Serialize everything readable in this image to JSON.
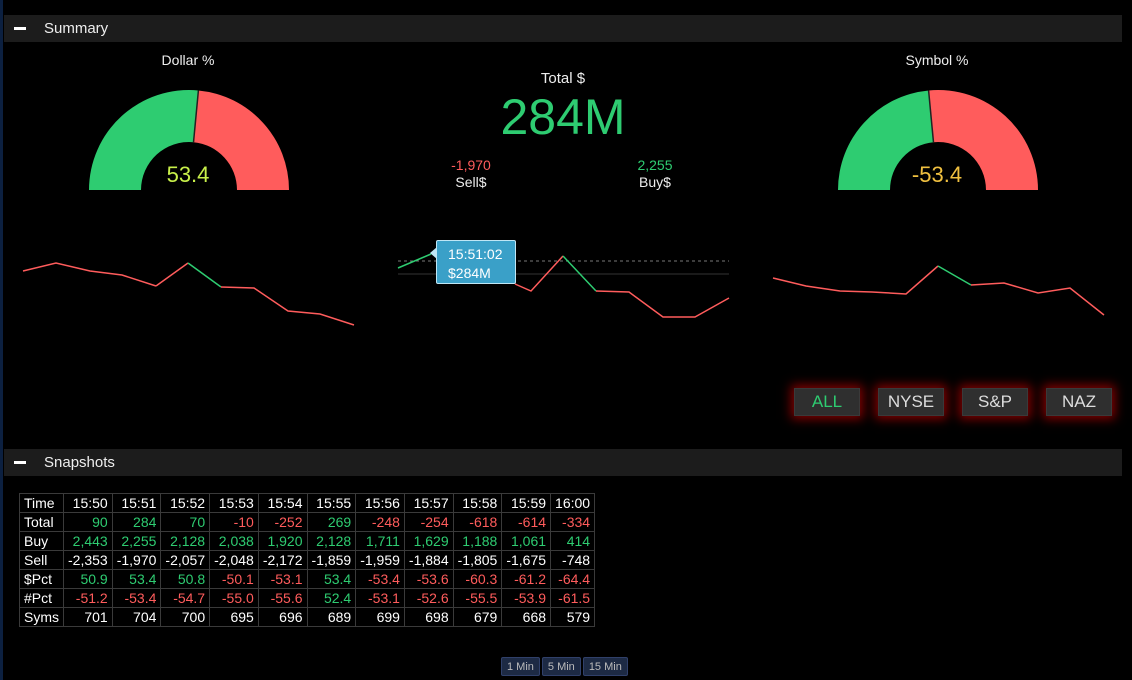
{
  "summary": {
    "title": "Summary",
    "dollar_pct": {
      "label": "Dollar %",
      "value": "53.4",
      "value_color": "#c8f04a",
      "green_fraction": 0.53
    },
    "symbol_pct": {
      "label": "Symbol %",
      "value": "-53.4",
      "value_color": "#f0c040",
      "green_fraction": 0.47
    },
    "total": {
      "label": "Total $",
      "value": "284M"
    },
    "sell": {
      "label": "Sell$",
      "value": "-1,970"
    },
    "buy": {
      "label": "Buy$",
      "value": "2,255"
    },
    "tooltip": {
      "time": "15:51:02",
      "value": "$284M"
    },
    "filters": [
      "ALL",
      "NYSE",
      "S&P",
      "NAZ"
    ],
    "active_filter": "ALL"
  },
  "snapshots": {
    "title": "Snapshots",
    "headers": [
      "Time",
      "15:50",
      "15:51",
      "15:52",
      "15:53",
      "15:54",
      "15:55",
      "15:56",
      "15:57",
      "15:58",
      "15:59",
      "16:00"
    ],
    "rows": [
      {
        "label": "Total",
        "cells": [
          "90",
          "284",
          "70",
          "-10",
          "-252",
          "269",
          "-248",
          "-254",
          "-618",
          "-614",
          "-334"
        ],
        "colors": [
          "pos",
          "pos",
          "pos",
          "neg",
          "neg",
          "pos",
          "neg",
          "neg",
          "neg",
          "neg",
          "neg"
        ]
      },
      {
        "label": "Buy",
        "cells": [
          "2,443",
          "2,255",
          "2,128",
          "2,038",
          "1,920",
          "2,128",
          "1,711",
          "1,629",
          "1,188",
          "1,061",
          "414"
        ],
        "colors": [
          "pos",
          "pos",
          "pos",
          "pos",
          "pos",
          "pos",
          "pos",
          "pos",
          "pos",
          "pos",
          "pos"
        ]
      },
      {
        "label": "Sell",
        "cells": [
          "-2,353",
          "-1,970",
          "-2,057",
          "-2,048",
          "-2,172",
          "-1,859",
          "-1,959",
          "-1,884",
          "-1,805",
          "-1,675",
          "-748"
        ],
        "colors": [
          "neu",
          "neu",
          "neu",
          "neu",
          "neu",
          "neu",
          "neu",
          "neu",
          "neu",
          "neu",
          "neu"
        ]
      },
      {
        "label": "$Pct",
        "cells": [
          "50.9",
          "53.4",
          "50.8",
          "-50.1",
          "-53.1",
          "53.4",
          "-53.4",
          "-53.6",
          "-60.3",
          "-61.2",
          "-64.4"
        ],
        "colors": [
          "pos",
          "pos",
          "pos",
          "neg",
          "neg",
          "pos",
          "neg",
          "neg",
          "neg",
          "neg",
          "neg"
        ]
      },
      {
        "label": "#Pct",
        "cells": [
          "-51.2",
          "-53.4",
          "-54.7",
          "-55.0",
          "-55.6",
          "52.4",
          "-53.1",
          "-52.6",
          "-55.5",
          "-53.9",
          "-61.5"
        ],
        "colors": [
          "neg",
          "neg",
          "neg",
          "neg",
          "neg",
          "pos",
          "neg",
          "neg",
          "neg",
          "neg",
          "neg"
        ]
      },
      {
        "label": "Syms",
        "cells": [
          "701",
          "704",
          "700",
          "695",
          "696",
          "689",
          "699",
          "698",
          "679",
          "668",
          "579"
        ],
        "colors": [
          "neu",
          "neu",
          "neu",
          "neu",
          "neu",
          "neu",
          "neu",
          "neu",
          "neu",
          "neu",
          "neu"
        ]
      }
    ],
    "intervals": [
      "1 Min",
      "5 Min",
      "15 Min"
    ]
  },
  "colors": {
    "up": "#2ecc71",
    "down": "#ff5c5c",
    "background": "#000000",
    "panel_bar": "#1c1c1c"
  }
}
